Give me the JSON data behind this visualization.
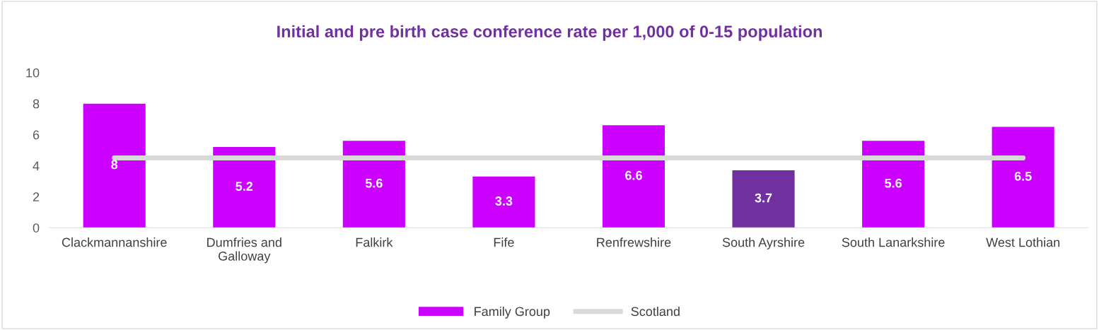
{
  "chart_data": {
    "type": "bar",
    "title": "Initial and pre birth case conference rate per 1,000 of 0-15 population",
    "categories": [
      "Clackmannanshire",
      "Dumfries and\nGalloway",
      "Falkirk",
      "Fife",
      "Renfrewshire",
      "South Ayrshire",
      "South Lanarkshire",
      "West Lothian"
    ],
    "series": [
      {
        "name": "Family Group",
        "color": "#cc00ff",
        "colors": [
          "#cc00ff",
          "#cc00ff",
          "#cc00ff",
          "#cc00ff",
          "#cc00ff",
          "#7030a0",
          "#cc00ff",
          "#cc00ff"
        ],
        "values": [
          8,
          5.2,
          5.6,
          3.3,
          6.6,
          3.7,
          5.6,
          6.5
        ],
        "value_labels": [
          "8",
          "5.2",
          "5.6",
          "3.3",
          "6.6",
          "3.7",
          "5.6",
          "6.5"
        ]
      },
      {
        "name": "Scotland",
        "type": "line",
        "color": "#d9d9d9",
        "values": [
          4.5,
          4.5,
          4.5,
          4.5,
          4.5,
          4.5,
          4.5,
          4.5
        ]
      }
    ],
    "ylim": [
      0,
      10
    ],
    "yticks": [
      0,
      2,
      4,
      6,
      8,
      10
    ],
    "grid": false,
    "legend": "bottom"
  }
}
